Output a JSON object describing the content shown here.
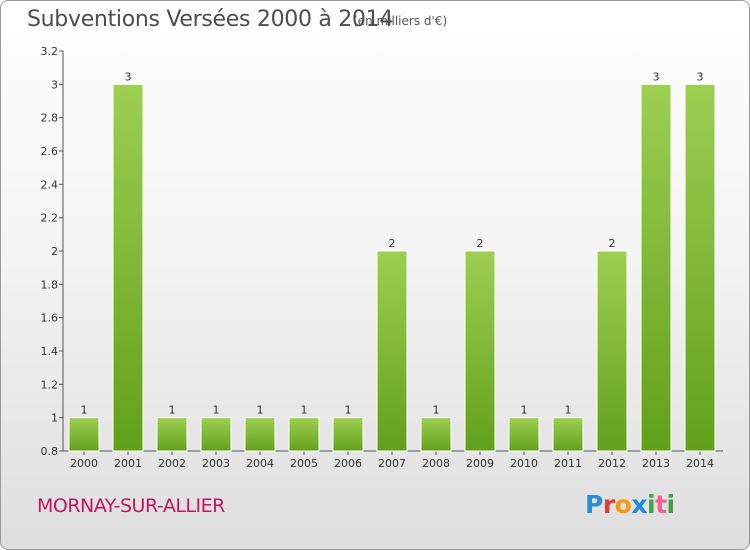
{
  "header": {
    "title": "Subventions Versées 2000 à 2014",
    "subtitle": "(en milliers d'€)"
  },
  "footer": {
    "commune": "MORNAY-SUR-ALLIER",
    "logo_text": "Proxiti",
    "logo_colors": [
      "#2a8dd6",
      "#e53935",
      "#f39c12",
      "#1e88e5",
      "#43a047",
      "#f06292",
      "#43a047"
    ]
  },
  "chart_data": {
    "type": "bar",
    "categories": [
      "2000",
      "2001",
      "2002",
      "2003",
      "2004",
      "2005",
      "2006",
      "2007",
      "2008",
      "2009",
      "2010",
      "2011",
      "2012",
      "2013",
      "2014"
    ],
    "values": [
      1,
      3,
      1,
      1,
      1,
      1,
      1,
      2,
      1,
      2,
      1,
      1,
      2,
      3,
      3
    ],
    "data_labels": [
      "1",
      "3",
      "1",
      "1",
      "1",
      "1",
      "1",
      "2",
      "1",
      "2",
      "1",
      "1",
      "2",
      "3",
      "3"
    ],
    "ylim": [
      0.8,
      3.2
    ],
    "yticks": [
      "0.8",
      "1",
      "1.2",
      "1.4",
      "1.6",
      "1.8",
      "2",
      "2.2",
      "2.4",
      "2.6",
      "2.8",
      "3",
      "3.2"
    ],
    "ytick_values": [
      0.8,
      1.0,
      1.2,
      1.4,
      1.6,
      1.8,
      2.0,
      2.2,
      2.4,
      2.6,
      2.8,
      3.0,
      3.2
    ],
    "title": "Subventions Versées 2000 à 2014",
    "xlabel": "",
    "ylabel": "",
    "grid": false,
    "bar_color_top": "#9ccf52",
    "bar_color_bottom": "#62a01a"
  }
}
